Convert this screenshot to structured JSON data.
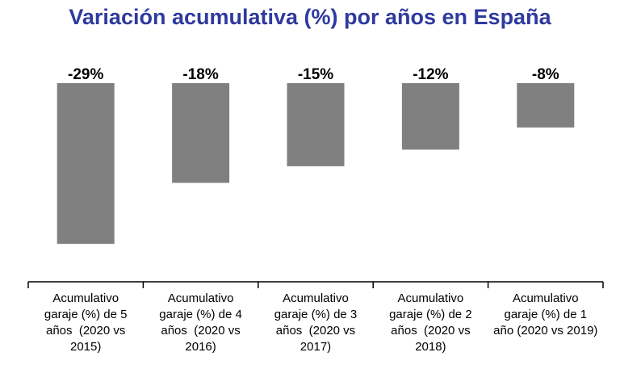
{
  "chart_data": {
    "type": "bar",
    "title": "Variación acumulativa (%) por años en España",
    "categories": [
      "Acumulativo garaje (%) de 5 años  (2020 vs 2015)",
      "Acumulativo garaje (%) de 4 años  (2020 vs 2016)",
      "Acumulativo garaje (%) de 3 años  (2020 vs 2017)",
      "Acumulativo garaje (%) de 2 años  (2020 vs 2018)",
      "Acumulativo garaje (%) de 1 año (2020 vs 2019)"
    ],
    "category_lines": [
      [
        "Acumulativo",
        "garaje (%) de 5",
        "años  (2020 vs",
        "2015)"
      ],
      [
        "Acumulativo",
        "garaje (%) de 4",
        "años  (2020 vs",
        "2016)"
      ],
      [
        "Acumulativo",
        "garaje (%) de 3",
        "años  (2020 vs",
        "2017)"
      ],
      [
        "Acumulativo",
        "garaje (%) de 2",
        "años  (2020 vs",
        "2018)"
      ],
      [
        "Acumulativo",
        "garaje (%) de 1",
        "año (2020 vs 2019)"
      ]
    ],
    "values": [
      -29,
      -18,
      -15,
      -12,
      -8
    ],
    "data_labels": [
      "-29%",
      "-18%",
      "-15%",
      "-12%",
      "-8%"
    ],
    "ylim": [
      -35,
      0
    ],
    "grid": false,
    "xlabel": "",
    "ylabel": "",
    "colors": {
      "bar": "#808080",
      "title": "#2e3a9e",
      "axis": "#000000"
    }
  }
}
